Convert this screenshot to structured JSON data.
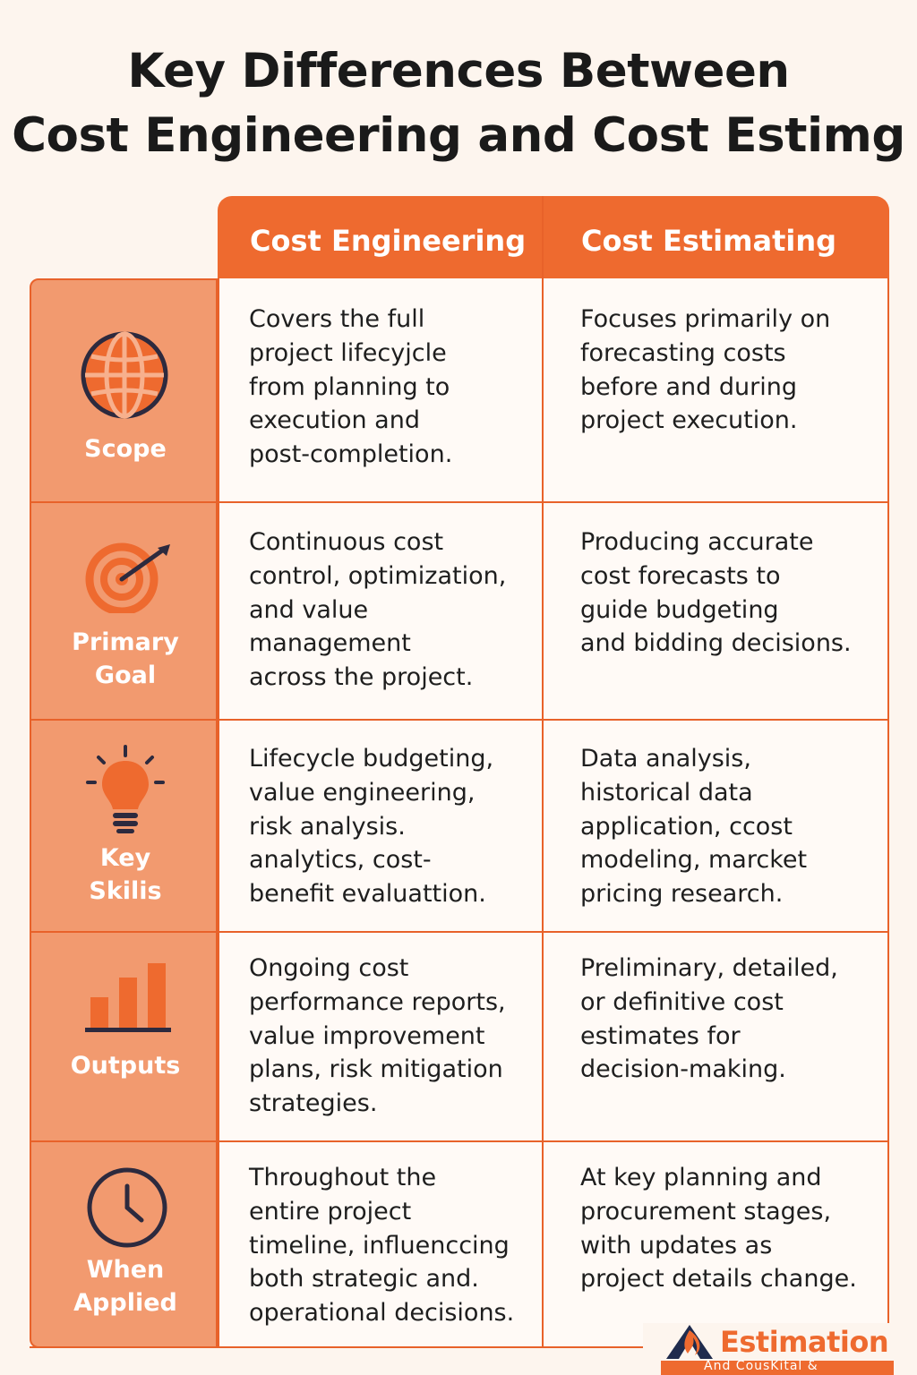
{
  "title": {
    "line1": "Key Differences Between",
    "line2": "Cost Engineering and Cost Estimg"
  },
  "columns": {
    "engineering": "Cost Engineering",
    "estimating": "Cost Estimating"
  },
  "rows": [
    {
      "label": "Scope",
      "icon": "globe-icon",
      "engineering": "Covers the full\nproject lifecyjcle\nfrom planning to\nexecution and\npost-completion.",
      "estimating": "Focuses primarily on\nforecasting costs\nbefore and during\nproject execution."
    },
    {
      "label": "Primary\nGoal",
      "icon": "target-icon",
      "engineering": "Continuous cost\ncontrol, optimization,\nand value\nmanagement\nacross the project.",
      "estimating": "Producing accurate\ncost forecasts to\nguide budgeting\nand bidding decisions."
    },
    {
      "label": "Key\nSkilis",
      "icon": "lightbulb-icon",
      "engineering": "Lifecycle budgeting,\nvalue engineering,\nrisk analysis.\nanalytics, cost-\nbenefit evaluattion.",
      "estimating": "Data analysis,\nhistorical data\napplication, ccost\nmodeling, marcket\npricing research."
    },
    {
      "label": "Outputs",
      "icon": "bar-chart-icon",
      "engineering": "Ongoing cost\nperformance reports,\nvalue improvement\nplans, risk mitigation\nstrategies.",
      "estimating": "Preliminary, detailed,\nor definitive cost\nestimates for\ndecision-making."
    },
    {
      "label": "When\nApplied",
      "icon": "clock-icon",
      "engineering": "Throughout the\nentire project\ntimeline, influenccing\nboth strategic and.\noperational decisions.",
      "estimating": "At key planning and\nprocurement stages,\nwith updates as\nproject details change."
    }
  ],
  "logo": {
    "word": "Estimation",
    "tagline": "And CousKital &"
  },
  "colors": {
    "accent": "#ee6a2f",
    "category_bg": "#f29a6f",
    "icon_dark": "#2d2a3e"
  }
}
